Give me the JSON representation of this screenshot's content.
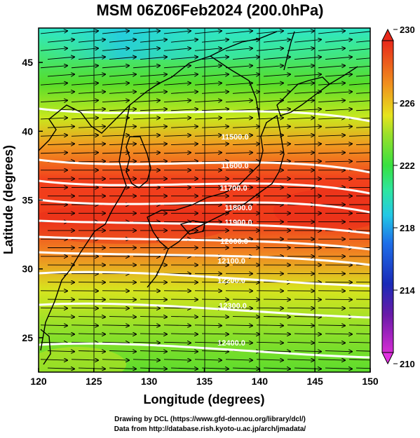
{
  "title": "MSM 06Z06Feb2024 (200.0hPa)",
  "x_axis": {
    "label": "Longitude (degrees)",
    "range": [
      120,
      150
    ],
    "ticks": [
      "120",
      "125",
      "130",
      "135",
      "140",
      "145",
      "150"
    ]
  },
  "y_axis": {
    "label": "Latitude  (degrees)",
    "range": [
      22.5,
      47.5
    ],
    "ticks": [
      "25",
      "30",
      "35",
      "40",
      "45"
    ]
  },
  "colorbar": {
    "range": [
      210,
      230
    ],
    "ticks": [
      "210",
      "214",
      "218",
      "222",
      "226",
      "230"
    ]
  },
  "contours": [
    {
      "label": "11500.0"
    },
    {
      "label": "11600.0"
    },
    {
      "label": "11700.0"
    },
    {
      "label": "11800.0"
    },
    {
      "label": "11900.0"
    },
    {
      "label": "12000.0"
    },
    {
      "label": "12100.0"
    },
    {
      "label": "12200.0"
    },
    {
      "label": "12300.0"
    },
    {
      "label": "12400.0"
    }
  ],
  "footer": {
    "line1": "Drawing by DCL (https://www.gfd-dennou.org/library/dcl/)",
    "line2": "Data from http://database.rish.kyoto-u.ac.jp/arch/jmadata/"
  }
}
